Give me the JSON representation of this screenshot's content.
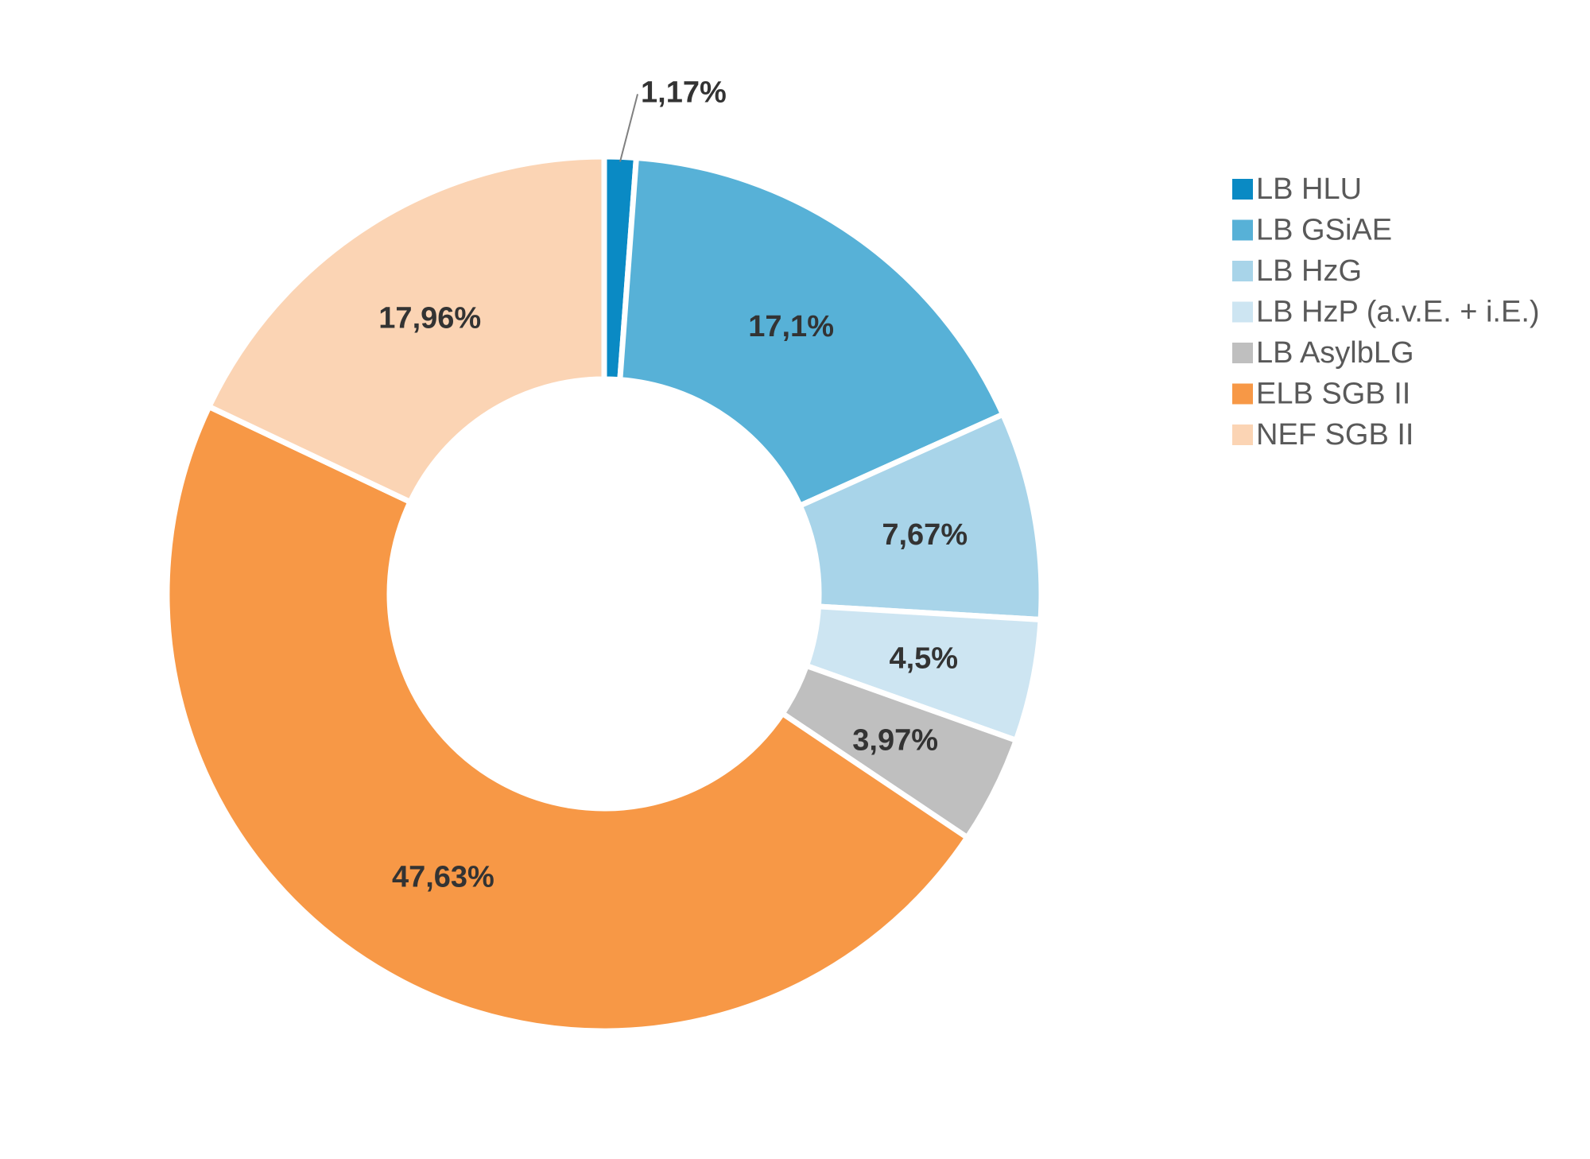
{
  "chart_data": {
    "type": "pie",
    "donut": true,
    "title": "",
    "legend_position": "right",
    "series": [
      {
        "name": "LB HLU",
        "value": 1.17,
        "label": "1,17%",
        "color": "#0a8ac4"
      },
      {
        "name": "LB GSiAE",
        "value": 17.1,
        "label": "17,1%",
        "color": "#57b1d7"
      },
      {
        "name": "LB HzG",
        "value": 7.67,
        "label": "7,67%",
        "color": "#a8d4e9"
      },
      {
        "name": "LB HzP (a.v.E. + i.E.)",
        "value": 4.5,
        "label": "4,5%",
        "color": "#cde5f2"
      },
      {
        "name": "LB AsylbLG",
        "value": 3.97,
        "label": "3,97%",
        "color": "#bfbfbf"
      },
      {
        "name": "ELB SGB II",
        "value": 47.63,
        "label": "47,63%",
        "color": "#f79846"
      },
      {
        "name": "NEF SGB II",
        "value": 17.96,
        "label": "17,96%",
        "color": "#fbd4b4"
      }
    ]
  }
}
